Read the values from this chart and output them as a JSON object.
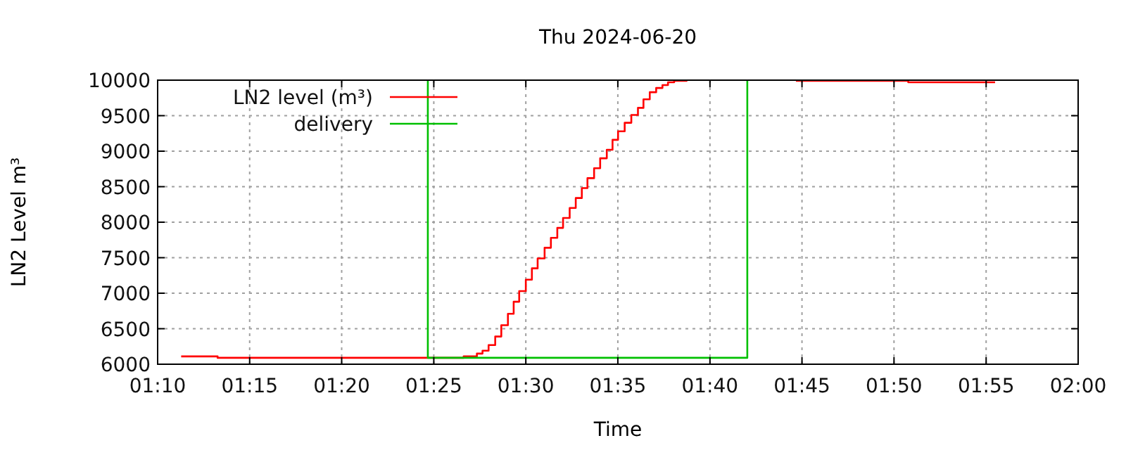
{
  "chart_data": {
    "type": "step",
    "title": "Thu 2024-06-20",
    "xlabel": "Time",
    "ylabel": "LN2 Level m³",
    "xlim": [
      1.1667,
      2
    ],
    "xticks": [
      {
        "value": 1.1667,
        "label": "01:10"
      },
      {
        "value": 1.25,
        "label": "01:15"
      },
      {
        "value": 1.3333,
        "label": "01:20"
      },
      {
        "value": 1.4167,
        "label": "01:25"
      },
      {
        "value": 1.5,
        "label": "01:30"
      },
      {
        "value": 1.5833,
        "label": "01:35"
      },
      {
        "value": 1.6667,
        "label": "01:40"
      },
      {
        "value": 1.75,
        "label": "01:45"
      },
      {
        "value": 1.8333,
        "label": "01:50"
      },
      {
        "value": 1.9167,
        "label": "01:55"
      },
      {
        "value": 2,
        "label": "02:00"
      }
    ],
    "ylim": [
      6000,
      10000
    ],
    "yticks": [
      6000,
      6500,
      7000,
      7500,
      8000,
      8500,
      9000,
      9500,
      10000
    ],
    "grid": true,
    "legend": "top left",
    "marker": "none",
    "line_style": "solid",
    "series": [
      {
        "name": "LN2 level (m³)",
        "color": "#ff0000",
        "x": [
          1.188,
          1.221,
          1.4437,
          1.4557,
          1.4608,
          1.4663,
          1.4723,
          1.4778,
          1.4838,
          1.489,
          1.494,
          1.5,
          1.5055,
          1.5107,
          1.517,
          1.5227,
          1.5285,
          1.5337,
          1.5397,
          1.5452,
          1.5507,
          1.5558,
          1.5618,
          1.5673,
          1.5733,
          1.5785,
          1.5835,
          1.5895,
          1.5955,
          1.6015,
          1.6065,
          1.6122,
          1.618,
          1.6237,
          1.6287,
          1.6343,
          1.6462,
          1.7,
          1.7445,
          1.8462,
          1.9248
        ],
        "values": [
          6110,
          6090,
          6110,
          6150,
          6190,
          6270,
          6390,
          6550,
          6710,
          6880,
          7030,
          7190,
          7350,
          7490,
          7640,
          7780,
          7920,
          8060,
          8200,
          8340,
          8480,
          8620,
          8760,
          8900,
          9020,
          9160,
          9280,
          9400,
          9510,
          9610,
          9730,
          9830,
          9890,
          9930,
          9970,
          9990,
          9990,
          null,
          9990,
          9970,
          9970
        ]
      },
      {
        "name": "delivery",
        "color": "#00c000",
        "type": "line",
        "x": [
          1.4113,
          1.4113,
          1.7005,
          1.7005
        ],
        "values": [
          10000,
          6090,
          6090,
          10000
        ]
      }
    ]
  }
}
